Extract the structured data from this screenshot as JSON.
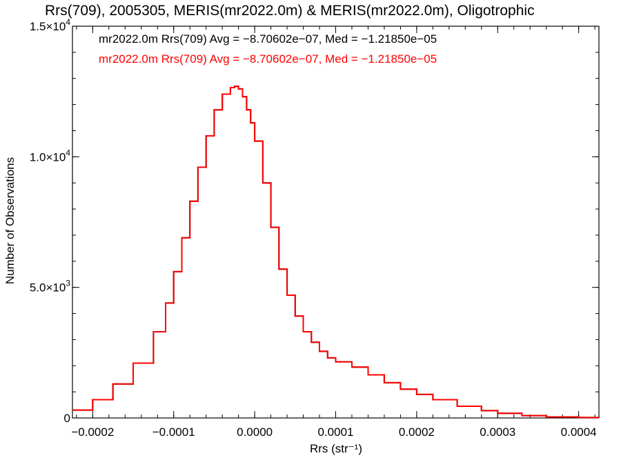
{
  "chart_data": {
    "type": "line",
    "title": "Rrs(709), 2005305, MERIS(mr2022.0m) & MERIS(mr2022.0m), Oligotrophic",
    "xlabel": "Rrs (str⁻¹)",
    "ylabel": "Number of Observations",
    "xlim": [
      -0.000225,
      0.000425
    ],
    "ylim": [
      0,
      15000
    ],
    "x_ticks": [
      -0.0002,
      -0.0001,
      0.0,
      0.0001,
      0.0002,
      0.0003,
      0.0004
    ],
    "x_tick_labels": [
      "−0.0002",
      "−0.0001",
      "0.0000",
      "0.0001",
      "0.0002",
      "0.0003",
      "0.0004"
    ],
    "y_ticks": [
      0,
      5000,
      10000,
      15000
    ],
    "y_tick_labels": [
      {
        "mantissa": "0",
        "exponent": ""
      },
      {
        "mantissa": "5.0×10",
        "exponent": "3"
      },
      {
        "mantissa": "1.0×10",
        "exponent": "4"
      },
      {
        "mantissa": "1.5×10",
        "exponent": "4"
      }
    ],
    "annotations": [
      {
        "text": "mr2022.0m Rrs(709) Avg = −8.70602e−07, Med = −1.21850e−05",
        "color": "#000000"
      },
      {
        "text": "mr2022.0m Rrs(709) Avg = −8.70602e−07, Med = −1.21850e−05",
        "color": "#ff0000"
      }
    ],
    "series": [
      {
        "color": "#000000",
        "step": true,
        "x": [
          -0.000225,
          -0.0002,
          -0.000175,
          -0.00015,
          -0.000125,
          -0.00011,
          -0.0001,
          -9e-05,
          -8e-05,
          -7e-05,
          -6e-05,
          -5e-05,
          -4e-05,
          -3e-05,
          -2.5e-05,
          -2e-05,
          -1.5e-05,
          -1e-05,
          -5e-06,
          0.0,
          1e-05,
          2e-05,
          3e-05,
          4e-05,
          5e-05,
          6e-05,
          7e-05,
          8e-05,
          9e-05,
          0.0001,
          0.00012,
          0.00014,
          0.00016,
          0.00018,
          0.0002,
          0.00022,
          0.00025,
          0.00028,
          0.0003,
          0.00033,
          0.00036,
          0.0004,
          0.000425
        ],
        "y": [
          300,
          700,
          1300,
          2100,
          3300,
          4400,
          5600,
          6900,
          8300,
          9600,
          10800,
          11800,
          12400,
          12650,
          12700,
          12600,
          12300,
          11800,
          11300,
          10600,
          9000,
          7300,
          5700,
          4700,
          3900,
          3300,
          2900,
          2550,
          2300,
          2150,
          1950,
          1650,
          1350,
          1100,
          900,
          700,
          450,
          280,
          180,
          90,
          40,
          15,
          5
        ]
      },
      {
        "color": "#ff0000",
        "step": true,
        "x": [
          -0.000225,
          -0.0002,
          -0.000175,
          -0.00015,
          -0.000125,
          -0.00011,
          -0.0001,
          -9e-05,
          -8e-05,
          -7e-05,
          -6e-05,
          -5e-05,
          -4e-05,
          -3e-05,
          -2.5e-05,
          -2e-05,
          -1.5e-05,
          -1e-05,
          -5e-06,
          0.0,
          1e-05,
          2e-05,
          3e-05,
          4e-05,
          5e-05,
          6e-05,
          7e-05,
          8e-05,
          9e-05,
          0.0001,
          0.00012,
          0.00014,
          0.00016,
          0.00018,
          0.0002,
          0.00022,
          0.00025,
          0.00028,
          0.0003,
          0.00033,
          0.00036,
          0.0004,
          0.000425
        ],
        "y": [
          300,
          700,
          1300,
          2100,
          3300,
          4400,
          5600,
          6900,
          8300,
          9600,
          10800,
          11800,
          12400,
          12650,
          12700,
          12600,
          12300,
          11800,
          11300,
          10600,
          9000,
          7300,
          5700,
          4700,
          3900,
          3300,
          2900,
          2550,
          2300,
          2150,
          1950,
          1650,
          1350,
          1100,
          900,
          700,
          450,
          280,
          180,
          90,
          40,
          15,
          5
        ]
      }
    ]
  }
}
